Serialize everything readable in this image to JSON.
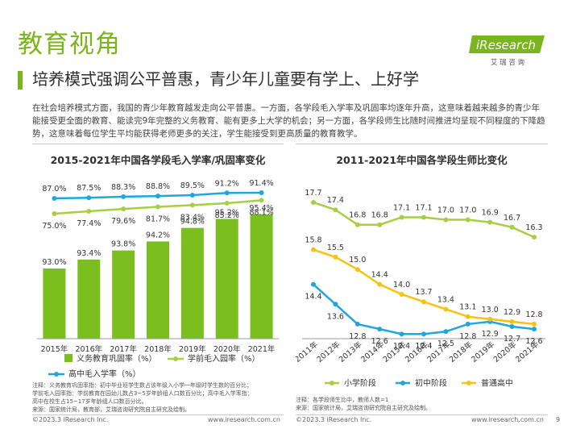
{
  "page": {
    "section_title": "教育视角",
    "subtitle": "培养模式强调公平普惠，青少年儿童要有学上、上好学",
    "intro": "在社会培养模式方面，我国的青少年教育越发走向公平普惠。一方面，各学段毛入学率及巩固率均逐年升高，这意味着越来越多的青少年能接受更全面的教育、能读完9年完整的义务教育、能有更多上大学的机会；另一方面，各学段师生比随时间推进均呈现不同程度的下降趋势，这意味着每位学生平均能获得老师更多的关注，学生能接受到更高质量的教育教学。",
    "page_number": "9",
    "colors": {
      "green": "#7ab51d",
      "bar_green": "#7bbf1e",
      "lightgreen": "#a6cf43",
      "blue": "#1fa6e0",
      "yellow": "#f7c313"
    }
  },
  "logo": {
    "brand": "iResearch",
    "tagline": "艾 瑞 咨 询"
  },
  "left_chart": {
    "title": "2015-2021年中国各学段毛入学率/巩固率变化",
    "footnote_lines": [
      "注释：义务教育巩固率指：初中毕业班学生数占该年级入小学一年级时学生数的百分比；",
      "学前毛入园率指：学前教育在园幼儿数占3~5岁年龄组人口数百分比；高中毛入学率指：",
      "高中在校生占15~17岁年龄组人口数百分比。",
      "来源：国家统计局，教育部，艾瑞咨询研究院自主研究及绘制。"
    ],
    "footer_left": "©2023.3 iResearch Inc.",
    "footer_right": "www.iresearch.com.cn"
  },
  "right_chart": {
    "title": "2011-2021年中国各学段生师比变化",
    "footnote_lines": [
      "注释：各学段师生比中，教师人数=1",
      "来源：国家统计局，艾瑞咨询研究院自主研究及绘制。"
    ],
    "footer_left": "©2023.3 iResearch Inc.",
    "footer_right": "www.iresearch.com.cn"
  },
  "chart_data": [
    {
      "type": "bar",
      "title": "2015-2021年中国各学段毛入学率/巩固率变化",
      "categories": [
        "2015年",
        "2016年",
        "2017年",
        "2018年",
        "2019年",
        "2020年",
        "2021年"
      ],
      "series": [
        {
          "name": "义务教育巩固率（%）",
          "kind": "bar",
          "values": [
            93.0,
            93.4,
            93.8,
            94.2,
            94.8,
            95.2,
            95.4
          ],
          "labels": [
            "93.0%",
            "93.4%",
            "93.8%",
            "94.2%",
            "94.8%",
            "95.2%",
            "95.4%"
          ],
          "color": "#7bbf1e"
        },
        {
          "name": "学前毛入园率（%）",
          "kind": "line",
          "values": [
            75.0,
            77.4,
            79.6,
            81.7,
            83.4,
            85.2,
            88.1
          ],
          "labels": [
            "75.0%",
            "77.4%",
            "79.6%",
            "81.7%",
            "83.4%",
            "85.2%",
            "88.1%"
          ],
          "color": "#a6cf43"
        },
        {
          "name": "高中毛入学率（%）",
          "kind": "line",
          "values": [
            87.0,
            87.5,
            88.3,
            88.8,
            89.5,
            91.2,
            91.4
          ],
          "labels": [
            "87.0%",
            "87.5%",
            "88.3%",
            "88.8%",
            "89.5%",
            "91.2%",
            "91.4%"
          ],
          "color": "#1fa6e0"
        }
      ]
    },
    {
      "type": "line",
      "title": "2011-2021年中国各学段生师比变化",
      "categories": [
        "2011年",
        "2012年",
        "2013年",
        "2014年",
        "2015年",
        "2016年",
        "2017年",
        "2018年",
        "2019年",
        "2020年",
        "2021年"
      ],
      "series": [
        {
          "name": "小学阶段",
          "values": [
            17.7,
            17.4,
            16.8,
            16.8,
            17.1,
            17.1,
            17.0,
            17.0,
            16.9,
            16.7,
            16.3
          ],
          "labels": [
            "17.7",
            "17.4",
            "16.8",
            "16.8",
            "17.1",
            "17.1",
            "17.0",
            "17.0",
            "16.9",
            "16.7",
            "16.3"
          ],
          "color": "#a6cf43"
        },
        {
          "name": "初中阶段",
          "values": [
            14.4,
            13.6,
            12.8,
            12.6,
            12.4,
            12.4,
            12.5,
            12.8,
            12.9,
            12.7,
            12.6
          ],
          "labels": [
            "14.4",
            "13.6",
            "12.8",
            "12.6",
            "12.4",
            "12.4",
            "12.5",
            "12.8",
            "12.9",
            "12.7",
            "12.6"
          ],
          "color": "#1fa6e0"
        },
        {
          "name": "普通高中",
          "values": [
            15.8,
            15.5,
            15.0,
            14.4,
            14.0,
            13.7,
            13.4,
            13.1,
            13.0,
            12.9,
            12.8
          ],
          "labels": [
            "15.8",
            "15.5",
            "15.0",
            "14.4",
            "14.0",
            "13.7",
            "13.4",
            "13.1",
            "13.0",
            "12.9",
            "12.8"
          ],
          "color": "#f7c313"
        }
      ]
    }
  ]
}
